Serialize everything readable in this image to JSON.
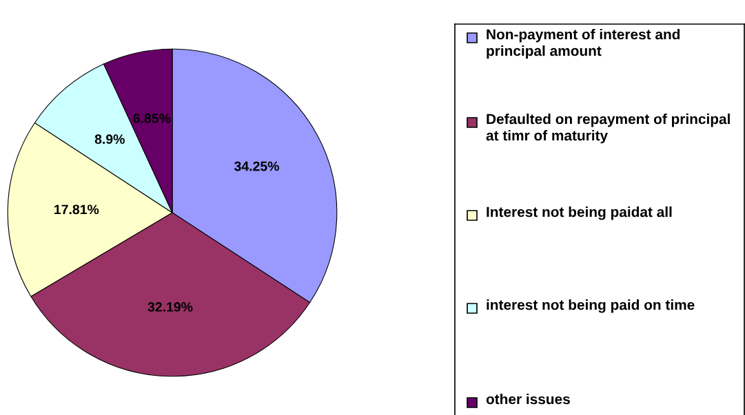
{
  "chart_data": {
    "type": "pie",
    "categories": [
      "Non-payment of interest and principal amount",
      "Defaulted on repayment of principal at timr of maturity",
      "Interest not being paidat all",
      "interest not being paid on time",
      "other issues"
    ],
    "values": [
      34.25,
      32.19,
      17.81,
      8.9,
      6.85
    ],
    "colors": [
      "#9999ff",
      "#993366",
      "#ffffcc",
      "#ccffff",
      "#660066"
    ],
    "value_labels": [
      "34.25%",
      "32.19%",
      "17.81%",
      "8.9%",
      "6.85%"
    ],
    "legend": "right"
  }
}
